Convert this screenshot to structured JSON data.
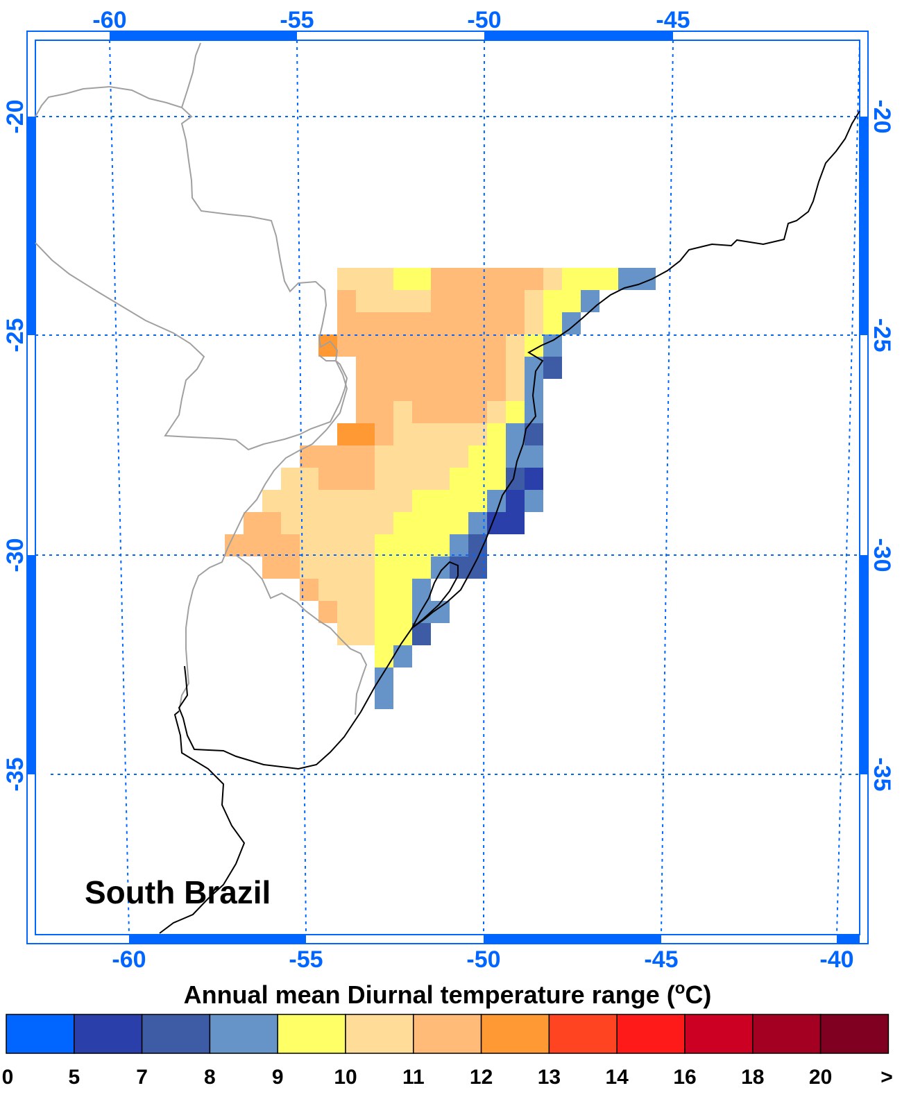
{
  "map": {
    "region_label": "South Brazil",
    "frame_color": "#0066ff",
    "grid_color": "#0066ff",
    "coast_color": "#000000",
    "border_color": "#a0a0a0",
    "top_lon_ticks": [
      "-60",
      "-55",
      "-50",
      "-45"
    ],
    "bottom_lon_ticks": [
      "-60",
      "-55",
      "-50",
      "-45",
      "-40"
    ],
    "left_lat_ticks": [
      "-20",
      "-25",
      "-30",
      "-35"
    ],
    "right_lat_ticks": [
      "-20",
      "-25",
      "-30",
      "-35"
    ]
  },
  "colorbar": {
    "title_text": "Annual mean Diurnal temperature range (",
    "title_sup": "o",
    "title_unit": "C)",
    "colors": [
      "#0066ff",
      "#2a3faa",
      "#3e5ba5",
      "#6694c8",
      "#ffff66",
      "#ffdd99",
      "#ffbb77",
      "#ff9933",
      "#ff4422",
      "#ff1a1a",
      "#cc0022",
      "#a30022",
      "#800022"
    ],
    "labels": [
      "0",
      "5",
      "7",
      "8",
      "9",
      "10",
      "11",
      "12",
      "13",
      "14",
      "16",
      "18",
      "20",
      ">"
    ]
  }
}
